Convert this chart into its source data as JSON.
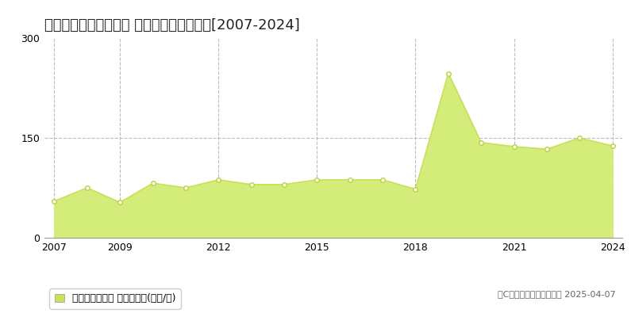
{
  "title": "大阪市東成区大今里西 マンション価格推移[2007-2024]",
  "years": [
    2007,
    2008,
    2009,
    2010,
    2011,
    2012,
    2013,
    2014,
    2015,
    2016,
    2017,
    2018,
    2019,
    2020,
    2021,
    2022,
    2023,
    2024
  ],
  "values": [
    55,
    75,
    53,
    82,
    75,
    87,
    80,
    80,
    87,
    87,
    87,
    73,
    247,
    143,
    137,
    133,
    150,
    138
  ],
  "line_color": "#c8e05a",
  "fill_color": "#d4ed7a",
  "fill_alpha": 1.0,
  "marker_color": "white",
  "marker_edge_color": "#b8d040",
  "marker_size": 4,
  "ylim": [
    0,
    300
  ],
  "yticks": [
    0,
    150,
    300
  ],
  "xlim_min": 2006.7,
  "xlim_max": 2024.3,
  "xticks": [
    2007,
    2009,
    2012,
    2015,
    2018,
    2021,
    2024
  ],
  "grid_color": "#bbbbbb",
  "grid_style": "--",
  "bg_color": "#ffffff",
  "plot_bg_color": "#ffffff",
  "legend_label": "マンション価格 平均嵪単価(万円/嵪)",
  "copyright_text": "（C）土地価格ドットコム 2025-04-07",
  "title_fontsize": 13,
  "tick_fontsize": 9,
  "legend_fontsize": 9,
  "copyright_fontsize": 8,
  "line_width": 1.2,
  "hline_150_color": "#bbbbbb",
  "hline_150_style": "--",
  "legend_square_color": "#c8e05a"
}
